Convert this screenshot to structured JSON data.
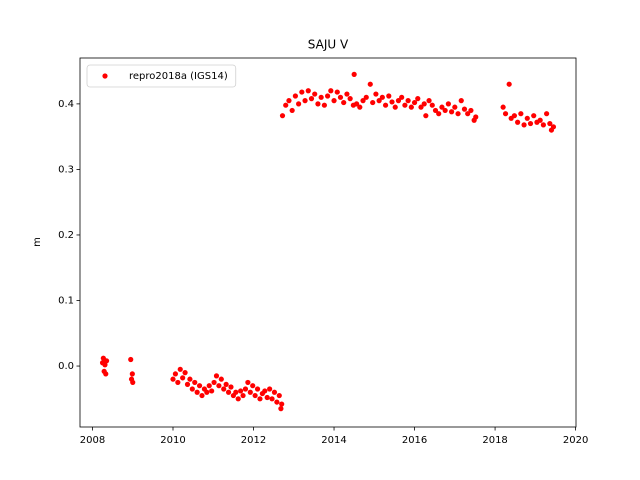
{
  "chart_data": {
    "type": "scatter",
    "title": "SAJU V",
    "y_label": "m",
    "x": [
      2008.25,
      2008.27,
      2008.29,
      2008.31,
      2008.33,
      2008.35,
      2008.95,
      2008.97,
      2008.99,
      2009.0,
      2010.0,
      2010.06,
      2010.12,
      2010.18,
      2010.24,
      2010.3,
      2010.36,
      2010.42,
      2010.48,
      2010.54,
      2010.6,
      2010.66,
      2010.72,
      2010.78,
      2010.84,
      2010.9,
      2010.96,
      2011.02,
      2011.08,
      2011.14,
      2011.2,
      2011.26,
      2011.32,
      2011.38,
      2011.44,
      2011.5,
      2011.56,
      2011.62,
      2011.68,
      2011.74,
      2011.8,
      2011.86,
      2011.92,
      2011.98,
      2012.04,
      2012.1,
      2012.16,
      2012.22,
      2012.28,
      2012.34,
      2012.4,
      2012.46,
      2012.52,
      2012.58,
      2012.64,
      2012.68,
      2012.7,
      2012.72,
      2012.8,
      2012.88,
      2012.96,
      2013.04,
      2013.12,
      2013.2,
      2013.28,
      2013.36,
      2013.44,
      2013.52,
      2013.6,
      2013.68,
      2013.76,
      2013.84,
      2013.92,
      2014.0,
      2014.08,
      2014.16,
      2014.24,
      2014.32,
      2014.4,
      2014.48,
      2014.5,
      2014.56,
      2014.64,
      2014.72,
      2014.8,
      2014.9,
      2014.96,
      2015.04,
      2015.12,
      2015.2,
      2015.28,
      2015.36,
      2015.44,
      2015.52,
      2015.6,
      2015.68,
      2015.76,
      2015.84,
      2015.92,
      2016.0,
      2016.08,
      2016.16,
      2016.24,
      2016.28,
      2016.36,
      2016.44,
      2016.52,
      2016.6,
      2016.68,
      2016.76,
      2016.84,
      2016.92,
      2017.0,
      2017.08,
      2017.16,
      2017.24,
      2017.32,
      2017.4,
      2017.48,
      2017.52,
      2018.2,
      2018.26,
      2018.35,
      2018.4,
      2018.48,
      2018.56,
      2018.64,
      2018.72,
      2018.8,
      2018.88,
      2018.96,
      2019.04,
      2019.12,
      2019.2,
      2019.28,
      2019.36,
      2019.4,
      2019.45
    ],
    "series": [
      {
        "name": "repro2018a (IGS14)",
        "color": "#ff0000",
        "values": [
          0.005,
          0.012,
          -0.008,
          0.002,
          -0.012,
          0.008,
          0.01,
          -0.02,
          -0.012,
          -0.025,
          -0.02,
          -0.012,
          -0.025,
          -0.005,
          -0.018,
          -0.01,
          -0.028,
          -0.02,
          -0.035,
          -0.025,
          -0.04,
          -0.03,
          -0.045,
          -0.035,
          -0.04,
          -0.03,
          -0.038,
          -0.025,
          -0.015,
          -0.03,
          -0.02,
          -0.035,
          -0.028,
          -0.04,
          -0.032,
          -0.045,
          -0.04,
          -0.05,
          -0.038,
          -0.045,
          -0.035,
          -0.025,
          -0.04,
          -0.03,
          -0.045,
          -0.035,
          -0.05,
          -0.042,
          -0.038,
          -0.048,
          -0.035,
          -0.05,
          -0.04,
          -0.055,
          -0.045,
          -0.065,
          -0.058,
          0.382,
          0.398,
          0.405,
          0.39,
          0.412,
          0.4,
          0.418,
          0.405,
          0.42,
          0.408,
          0.415,
          0.4,
          0.41,
          0.398,
          0.412,
          0.42,
          0.405,
          0.418,
          0.41,
          0.402,
          0.415,
          0.408,
          0.398,
          0.445,
          0.4,
          0.395,
          0.405,
          0.41,
          0.43,
          0.402,
          0.415,
          0.405,
          0.41,
          0.398,
          0.412,
          0.403,
          0.395,
          0.405,
          0.41,
          0.398,
          0.405,
          0.395,
          0.402,
          0.408,
          0.395,
          0.4,
          0.382,
          0.405,
          0.398,
          0.39,
          0.385,
          0.395,
          0.39,
          0.4,
          0.388,
          0.395,
          0.385,
          0.405,
          0.392,
          0.385,
          0.39,
          0.375,
          0.38,
          0.395,
          0.385,
          0.43,
          0.378,
          0.382,
          0.372,
          0.385,
          0.368,
          0.378,
          0.37,
          0.382,
          0.372,
          0.375,
          0.368,
          0.385,
          0.37,
          0.36,
          0.365
        ]
      }
    ],
    "xlim": [
      2007.69,
      2020.01
    ],
    "ylim": [
      -0.093,
      0.47
    ],
    "xticks": [
      2008,
      2010,
      2012,
      2014,
      2016,
      2018,
      2020
    ],
    "yticks": [
      {
        "value": 0,
        "label": "0.0"
      },
      0.1,
      0.2,
      0.3,
      0.4
    ],
    "legend_position": "upper-left"
  }
}
